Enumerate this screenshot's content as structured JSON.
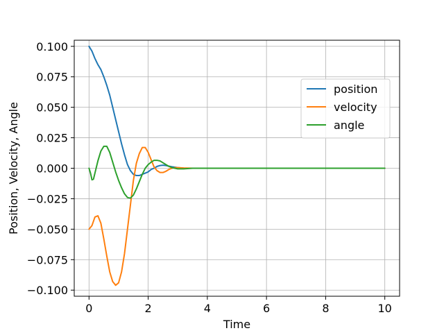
{
  "chart_data": {
    "type": "line",
    "xlabel": "Time",
    "ylabel": "Position, Velocity, Angle",
    "xlim": [
      -0.5,
      10.5
    ],
    "ylim": [
      -0.105,
      0.105
    ],
    "xticks": [
      0,
      2,
      4,
      6,
      8,
      10
    ],
    "xtick_labels": [
      "0",
      "2",
      "4",
      "6",
      "8",
      "10"
    ],
    "yticks": [
      -0.1,
      -0.075,
      -0.05,
      -0.025,
      0.0,
      0.025,
      0.05,
      0.075,
      0.1
    ],
    "ytick_labels": [
      "−0.100",
      "−0.075",
      "−0.050",
      "−0.025",
      "0.000",
      "0.025",
      "0.050",
      "0.075",
      "0.100"
    ],
    "grid": true,
    "legend_position": "upper-right",
    "series": [
      {
        "name": "position",
        "color": "#1f77b4",
        "x": [
          0,
          0.1,
          0.2,
          0.3,
          0.4,
          0.5,
          0.6,
          0.7,
          0.8,
          0.9,
          1.0,
          1.1,
          1.2,
          1.3,
          1.4,
          1.5,
          1.6,
          1.7,
          1.8,
          1.9,
          2.0,
          2.1,
          2.2,
          2.3,
          2.4,
          2.5,
          2.6,
          2.8,
          3.0,
          3.2,
          3.5,
          4.0,
          5.0,
          6.0,
          7.0,
          8.0,
          9.0,
          10.0
        ],
        "values": [
          0.1,
          0.096,
          0.09,
          0.085,
          0.081,
          0.075,
          0.068,
          0.06,
          0.05,
          0.04,
          0.03,
          0.02,
          0.011,
          0.003,
          -0.002,
          -0.005,
          -0.006,
          -0.006,
          -0.005,
          -0.004,
          -0.003,
          -0.001,
          0.0,
          0.0015,
          0.0022,
          0.0025,
          0.0022,
          0.0012,
          0.0005,
          0.0001,
          0.0,
          0.0,
          0.0,
          0.0,
          0.0,
          0.0,
          0.0,
          0.0
        ]
      },
      {
        "name": "velocity",
        "color": "#ff7f0e",
        "x": [
          0,
          0.1,
          0.2,
          0.3,
          0.4,
          0.5,
          0.6,
          0.7,
          0.8,
          0.9,
          1.0,
          1.1,
          1.2,
          1.3,
          1.4,
          1.5,
          1.6,
          1.7,
          1.8,
          1.9,
          2.0,
          2.1,
          2.2,
          2.3,
          2.4,
          2.5,
          2.6,
          2.7,
          2.8,
          2.9,
          3.0,
          3.2,
          3.5,
          4.0,
          5.0,
          6.0,
          7.0,
          8.0,
          9.0,
          10.0
        ],
        "values": [
          -0.05,
          -0.047,
          -0.04,
          -0.039,
          -0.045,
          -0.058,
          -0.072,
          -0.085,
          -0.093,
          -0.096,
          -0.094,
          -0.085,
          -0.07,
          -0.05,
          -0.03,
          -0.01,
          0.004,
          0.012,
          0.017,
          0.017,
          0.013,
          0.007,
          0.001,
          -0.002,
          -0.0035,
          -0.0035,
          -0.0025,
          -0.001,
          0.0,
          0.0005,
          0.0005,
          0.0002,
          0.0,
          0.0,
          0.0,
          0.0,
          0.0,
          0.0,
          0.0,
          0.0
        ]
      },
      {
        "name": "angle",
        "color": "#2ca02c",
        "x": [
          0,
          0.05,
          0.1,
          0.15,
          0.2,
          0.3,
          0.4,
          0.5,
          0.6,
          0.7,
          0.8,
          0.9,
          1.0,
          1.1,
          1.2,
          1.3,
          1.4,
          1.5,
          1.6,
          1.7,
          1.8,
          1.9,
          2.0,
          2.1,
          2.2,
          2.3,
          2.4,
          2.5,
          2.6,
          2.7,
          2.8,
          2.9,
          3.0,
          3.2,
          3.5,
          4.0,
          5.0,
          6.0,
          7.0,
          8.0,
          9.0,
          10.0
        ],
        "values": [
          0.0,
          -0.004,
          -0.0095,
          -0.009,
          -0.004,
          0.006,
          0.014,
          0.018,
          0.018,
          0.013,
          0.005,
          -0.003,
          -0.01,
          -0.016,
          -0.021,
          -0.024,
          -0.0245,
          -0.022,
          -0.017,
          -0.011,
          -0.005,
          0.0,
          0.003,
          0.005,
          0.0065,
          0.0065,
          0.006,
          0.0045,
          0.003,
          0.0015,
          0.0005,
          0.0,
          -0.0005,
          -0.0005,
          0.0,
          0.0,
          0.0,
          0.0,
          0.0,
          0.0,
          0.0,
          0.0
        ]
      }
    ]
  }
}
